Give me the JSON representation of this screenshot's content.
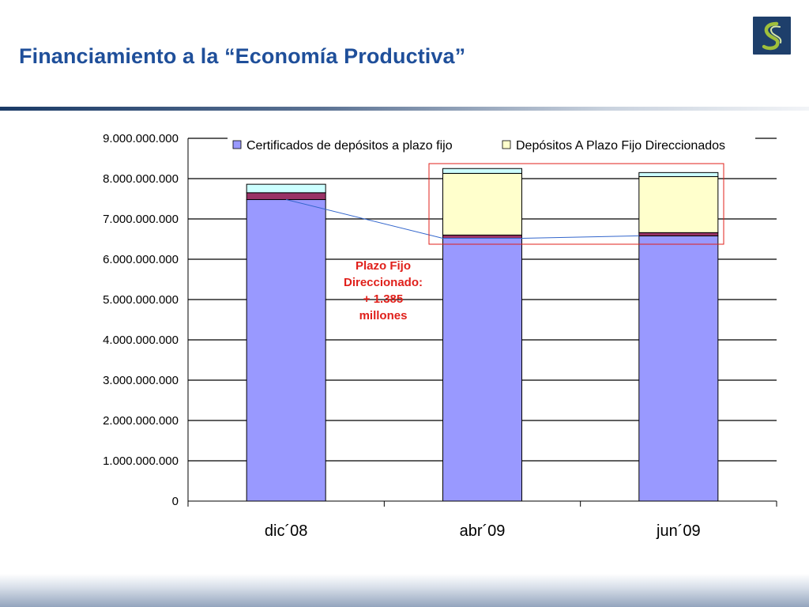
{
  "slide": {
    "title": "Financiamiento a la “Economía Productiva”",
    "logo_icon": "s-swirl-logo-icon"
  },
  "annotation": {
    "lines": [
      "Plazo Fijo",
      "Direccionado:",
      "+ 1.385",
      "millones"
    ],
    "color": "#e0201b"
  },
  "chart_data": {
    "type": "bar",
    "stacked": true,
    "categories": [
      "dic´08",
      "abr´09",
      "jun´09"
    ],
    "series": [
      {
        "name": "Certificados de depósitos a plazo fijo",
        "values": [
          7480000000,
          6520000000,
          6580000000
        ],
        "color": "#9999ff",
        "in_legend": true
      },
      {
        "name": "",
        "values": [
          170000000,
          80000000,
          80000000
        ],
        "color": "#993366",
        "in_legend": false
      },
      {
        "name": "Depósitos A Plazo Fijo Direccionados",
        "values": [
          0,
          1530000000,
          1390000000
        ],
        "color": "#ffffcc",
        "in_legend": true
      },
      {
        "name": "",
        "values": [
          210000000,
          120000000,
          100000000
        ],
        "color": "#ccffff",
        "in_legend": false
      }
    ],
    "ylim": [
      0,
      9000000000
    ],
    "yticks": [
      "0",
      "1.000.000.000",
      "2.000.000.000",
      "3.000.000.000",
      "4.000.000.000",
      "5.000.000.000",
      "6.000.000.000",
      "7.000.000.000",
      "8.000.000.000",
      "9.000.000.000"
    ],
    "grid": true,
    "legend_position": "top",
    "xlabel": "",
    "ylabel": ""
  }
}
